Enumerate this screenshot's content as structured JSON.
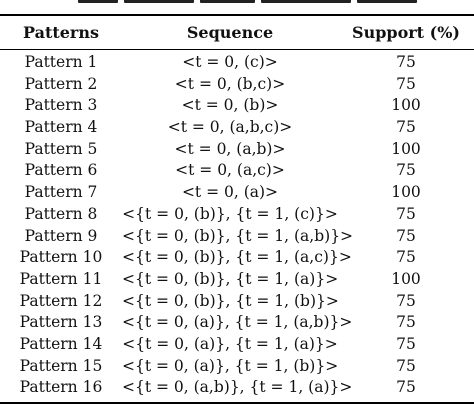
{
  "table": {
    "headers": {
      "patterns": "Patterns",
      "sequence": "Sequence",
      "support": "Support (%)"
    },
    "rows": [
      {
        "pattern": "Pattern 1",
        "sequence": "<t = 0, (c)>",
        "support": "75"
      },
      {
        "pattern": "Pattern 2",
        "sequence": "<t = 0, (b,c)>",
        "support": "75"
      },
      {
        "pattern": "Pattern 3",
        "sequence": "<t = 0, (b)>",
        "support": "100"
      },
      {
        "pattern": "Pattern 4",
        "sequence": "<t = 0, (a,b,c)>",
        "support": "75"
      },
      {
        "pattern": "Pattern 5",
        "sequence": "<t = 0, (a,b)>",
        "support": "100"
      },
      {
        "pattern": "Pattern 6",
        "sequence": "<t = 0, (a,c)>",
        "support": "75"
      },
      {
        "pattern": "Pattern 7",
        "sequence": "<t = 0, (a)>",
        "support": "100"
      },
      {
        "pattern": "Pattern 8",
        "sequence": "<{t = 0, (b)}, {t = 1, (c)}>",
        "support": "75"
      },
      {
        "pattern": "Pattern 9",
        "sequence": "<{t = 0, (b)}, {t = 1, (a,b)}>",
        "support": "75"
      },
      {
        "pattern": "Pattern 10",
        "sequence": "<{t = 0, (b)}, {t = 1, (a,c)}>",
        "support": "75"
      },
      {
        "pattern": "Pattern 11",
        "sequence": "<{t = 0, (b)}, {t = 1, (a)}>",
        "support": "100"
      },
      {
        "pattern": "Pattern 12",
        "sequence": "<{t = 0, (b)}, {t = 1, (b)}>",
        "support": "75"
      },
      {
        "pattern": "Pattern 13",
        "sequence": "<{t = 0, (a)}, {t = 1, (a,b)}>",
        "support": "75"
      },
      {
        "pattern": "Pattern 14",
        "sequence": "<{t = 0, (a)}, {t = 1, (a)}>",
        "support": "75"
      },
      {
        "pattern": "Pattern 15",
        "sequence": "<{t = 0, (a)}, {t = 1, (b)}>",
        "support": "75"
      },
      {
        "pattern": "Pattern 16",
        "sequence": "<{t = 0, (a,b)}, {t = 1, (a)}>",
        "support": "75"
      }
    ]
  }
}
